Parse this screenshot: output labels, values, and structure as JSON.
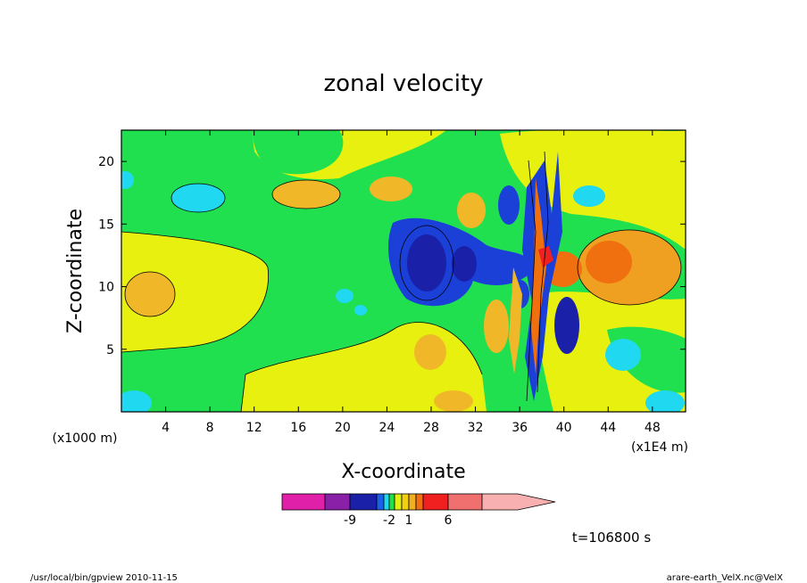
{
  "chart_data": {
    "type": "heatmap",
    "title": "zonal velocity",
    "xlabel": "X-coordinate",
    "ylabel": "Z-coordinate",
    "x_unit_left": "(x1000 m)",
    "x_unit_right": "(x1E4 m)",
    "xlim": [
      0,
      51
    ],
    "ylim": [
      0,
      22.5
    ],
    "x_ticks": [
      "4",
      "8",
      "12",
      "16",
      "20",
      "24",
      "28",
      "32",
      "36",
      "40",
      "44",
      "48"
    ],
    "x_tick_values": [
      4,
      8,
      12,
      16,
      20,
      24,
      28,
      32,
      36,
      40,
      44,
      48
    ],
    "y_ticks": [
      "5",
      "10",
      "15",
      "20"
    ],
    "y_tick_values": [
      5,
      10,
      15,
      20
    ],
    "colorbar": {
      "levels": [
        -12,
        -9,
        -6,
        -3,
        -2,
        -1,
        0,
        1,
        2,
        3,
        6,
        9,
        12
      ],
      "colors": [
        "#e020a8",
        "#8a20a8",
        "#1a20a8",
        "#1a60e8",
        "#20d8f0",
        "#20e050",
        "#e0f010",
        "#f0d010",
        "#f0b020",
        "#f07010",
        "#f02020",
        "#f07070",
        "#f8b0b0"
      ],
      "labels": [
        "-9",
        "-2",
        "1",
        "6"
      ],
      "label_values": [
        -9,
        -2,
        1,
        6
      ]
    },
    "time_label": "t=106800 s",
    "footer_left": "/usr/local/bin/gpview  2010-11-15",
    "footer_right": "arare-earth_VelX.nc@VelX"
  }
}
